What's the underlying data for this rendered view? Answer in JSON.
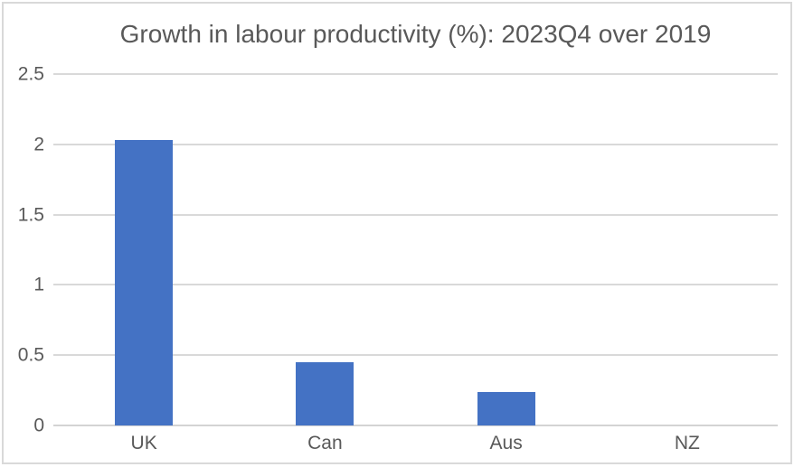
{
  "chart_data": {
    "type": "bar",
    "title": "Growth in labour productivity (%): 2023Q4 over 2019",
    "categories": [
      "UK",
      "Can",
      "Aus",
      "NZ"
    ],
    "values": [
      2.03,
      0.45,
      0.24,
      0
    ],
    "xlabel": "",
    "ylabel": "",
    "ylim": [
      0,
      2.5
    ],
    "yticks": [
      0,
      0.5,
      1,
      1.5,
      2,
      2.5
    ],
    "grid": true,
    "legend": false
  },
  "colors": {
    "bar": "#4472C4",
    "gridline": "#D9D9D9",
    "axis_line": "#D3D3D3",
    "text": "#595959",
    "frame_border": "#D9D9D9",
    "background": "#FFFFFF"
  }
}
